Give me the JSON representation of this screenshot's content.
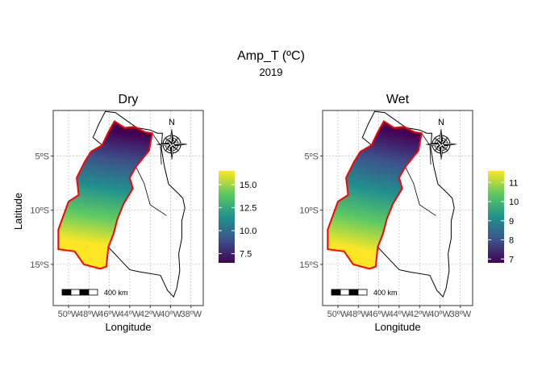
{
  "chart_data": {
    "type": "heatmap",
    "title": "Amp_T (ºC)",
    "subtitle": "2019",
    "xlabel": "Longitude",
    "ylabel": "Latitude",
    "x_ticks": [
      "50ºW",
      "48ºW",
      "46ºW",
      "44ºW",
      "42ºW",
      "40ºW",
      "38ºW"
    ],
    "y_ticks": [
      "5ºS",
      "10ºS",
      "15ºS"
    ],
    "x_tick_values": [
      -50,
      -48,
      -46,
      -44,
      -42,
      -40,
      -38
    ],
    "y_tick_values": [
      -5,
      -10,
      -15
    ],
    "xlim": [
      -51.5,
      -36.8
    ],
    "ylim": [
      -18.8,
      -0.8
    ],
    "grid": true,
    "palette": [
      "#440154",
      "#3b528b",
      "#21908d",
      "#5dc963",
      "#fde725"
    ],
    "region_border_color": "#ff0000",
    "scale_bar_label": "400 km",
    "north_label": "N",
    "panels": [
      {
        "name": "Dry",
        "legend_range": [
          6.5,
          16.5
        ],
        "legend_ticks": [
          7.5,
          10.0,
          12.5,
          15.0
        ],
        "legend_tick_labels": [
          "7.5",
          "10.0",
          "12.5",
          "15.0"
        ],
        "gradient_low_point": [
          -43.2,
          -3.0
        ],
        "gradient_high_point": [
          -44.8,
          -13.5
        ]
      },
      {
        "name": "Wet",
        "legend_range": [
          6.8,
          11.6
        ],
        "legend_ticks": [
          7,
          8,
          9,
          10,
          11
        ],
        "legend_tick_labels": [
          "7",
          "8",
          "9",
          "10",
          "11"
        ],
        "gradient_low_point": [
          -42.8,
          -3.0
        ],
        "gradient_high_point": [
          -45.2,
          -14.2
        ]
      }
    ]
  }
}
